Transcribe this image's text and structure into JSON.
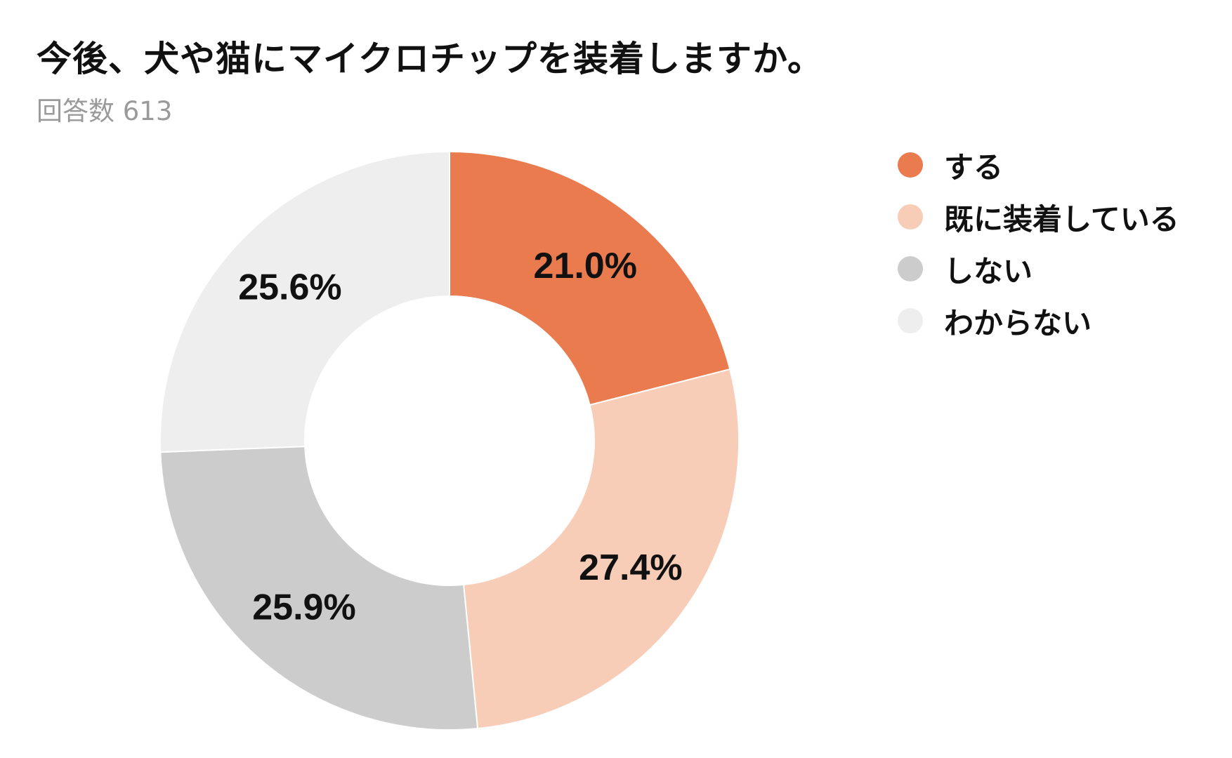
{
  "title": "今後、犬や猫にマイクロチップを装着しますか。",
  "subtitle": "回答数 613",
  "chart_data": {
    "type": "pie",
    "donut": true,
    "title": "今後、犬や猫にマイクロチップを装着しますか。",
    "subtitle": "回答数 613",
    "legend_position": "right",
    "slices": [
      {
        "name": "する",
        "value": 21.0,
        "label": "21.0%",
        "color": "#E97B4F"
      },
      {
        "name": "既に装着している",
        "value": 27.4,
        "label": "27.4%",
        "color": "#F7CDB8"
      },
      {
        "name": "しない",
        "value": 25.9,
        "label": "25.9%",
        "color": "#CCCCCC"
      },
      {
        "name": "わからない",
        "value": 25.6,
        "label": "25.6%",
        "color": "#EEEEEE"
      }
    ]
  }
}
